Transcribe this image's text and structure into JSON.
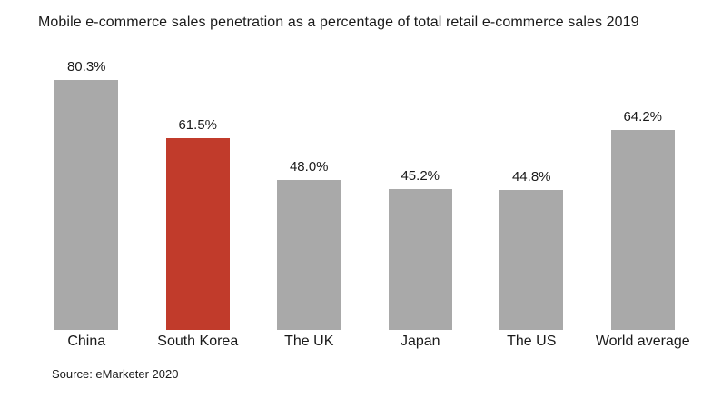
{
  "title": "Mobile e-commerce sales penetration as a percentage of total retail e-commerce sales 2019",
  "source": "Source: eMarketer 2020",
  "colors": {
    "bar_default": "#A9A9A9",
    "bar_highlight": "#C13B2B",
    "text": "#1A1A1A",
    "background": "#FFFFFF"
  },
  "chart_data": {
    "type": "bar",
    "title": "Mobile e-commerce sales penetration as a percentage of total retail e-commerce sales 2019",
    "categories": [
      "China",
      "South Korea",
      "The UK",
      "Japan",
      "The US",
      "World average"
    ],
    "values": [
      80.3,
      61.5,
      48.0,
      45.2,
      44.8,
      64.2
    ],
    "value_labels": [
      "80.3%",
      "61.5%",
      "48.0%",
      "45.2%",
      "44.8%",
      "64.2%"
    ],
    "highlighted_category": "South Korea",
    "xlabel": "",
    "ylabel": "",
    "ylim": [
      0,
      100
    ],
    "grid": false,
    "legend": null,
    "annotations": [
      "Source: eMarketer 2020"
    ]
  }
}
